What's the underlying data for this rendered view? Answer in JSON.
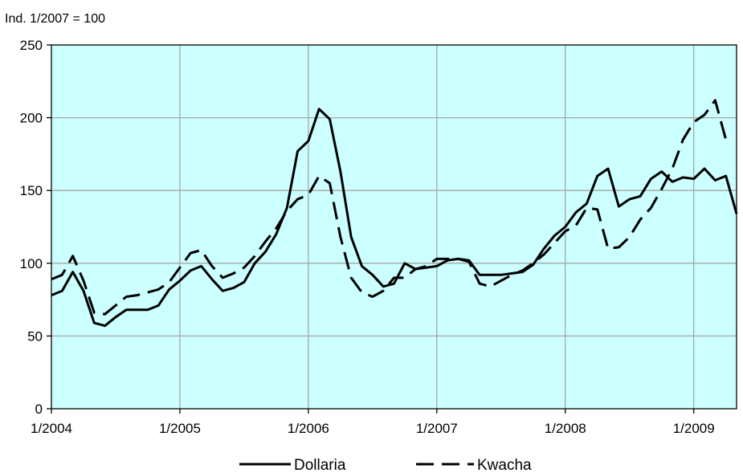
{
  "chart_data": {
    "type": "line",
    "title": "",
    "unit_label": "Ind. 1/2007 = 100",
    "xlabel": "",
    "ylabel": "",
    "ylim": [
      0,
      250
    ],
    "yticks": [
      0,
      50,
      100,
      150,
      200,
      250
    ],
    "xlim": [
      0,
      64
    ],
    "xticks": [
      {
        "pos": 0,
        "label": "1/2004"
      },
      {
        "pos": 12,
        "label": "1/2005"
      },
      {
        "pos": 24,
        "label": "1/2006"
      },
      {
        "pos": 36,
        "label": "1/2007"
      },
      {
        "pos": 48,
        "label": "1/2008"
      },
      {
        "pos": 60,
        "label": "1/2009"
      }
    ],
    "grid": true,
    "legend_position": "bottom",
    "plot_background": "#ccffff",
    "series": [
      {
        "name": "Dollaria",
        "style": "solid",
        "color": "#000000",
        "values": [
          78,
          81,
          94,
          81,
          59,
          57,
          63,
          68,
          68,
          68,
          71,
          82,
          88,
          95,
          98,
          89,
          81,
          83,
          87,
          100,
          108,
          120,
          138,
          177,
          184,
          206,
          199,
          163,
          118,
          98,
          92,
          84,
          86,
          100,
          96,
          97,
          98,
          102,
          103,
          102,
          92,
          92,
          92,
          93,
          94,
          99,
          110,
          119,
          125,
          135,
          141,
          160,
          165,
          139,
          144,
          146,
          158,
          163,
          156,
          159,
          158,
          165,
          157,
          160,
          134
        ]
      },
      {
        "name": "Kwacha",
        "style": "dashed",
        "color": "#000000",
        "values": [
          89,
          92,
          105,
          88,
          66,
          65,
          71,
          77,
          78,
          80,
          82,
          87,
          97,
          107,
          109,
          98,
          90,
          93,
          97,
          105,
          115,
          124,
          136,
          144,
          147,
          160,
          155,
          118,
          90,
          80,
          77,
          81,
          90,
          90,
          96,
          98,
          103,
          103,
          103,
          101,
          86,
          84,
          88,
          92,
          95,
          100,
          106,
          114,
          122,
          126,
          138,
          137,
          110,
          111,
          118,
          130,
          138,
          151,
          165,
          185,
          197,
          202,
          212,
          185
        ]
      }
    ]
  }
}
